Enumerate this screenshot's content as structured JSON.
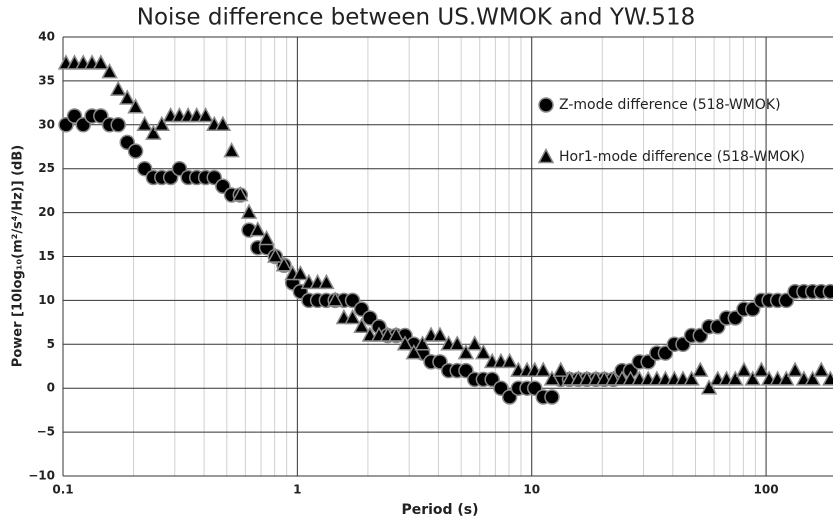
{
  "chart_data": {
    "type": "scatter",
    "title": "Noise difference between US.WMOK and YW.518",
    "xlabel": "Period (s)",
    "ylabel": "Power [10log₁₀(m²/s⁴/Hz)] (dB)",
    "xscale": "log",
    "xlim": [
      0.1,
      193
    ],
    "xticks": [
      0.1,
      1,
      10,
      100
    ],
    "ylim": [
      -10,
      40
    ],
    "yticks": [
      {
        "value": -10,
        "label": "−10"
      },
      {
        "value": -5,
        "label": "−5"
      },
      0,
      5,
      10,
      15,
      20,
      25,
      30,
      35,
      40
    ],
    "grid": true,
    "minor_grid": true,
    "legend": "upper right",
    "x": [
      0.103,
      0.112,
      0.122,
      0.133,
      0.145,
      0.158,
      0.172,
      0.188,
      0.204,
      0.223,
      0.243,
      0.264,
      0.288,
      0.314,
      0.342,
      0.372,
      0.406,
      0.442,
      0.481,
      0.524,
      0.571,
      0.622,
      0.678,
      0.739,
      0.805,
      0.877,
      0.955,
      1.03,
      1.12,
      1.22,
      1.33,
      1.45,
      1.58,
      1.72,
      1.88,
      2.04,
      2.23,
      2.43,
      2.64,
      2.88,
      3.14,
      3.42,
      3.72,
      4.06,
      4.42,
      4.81,
      5.24,
      5.71,
      6.22,
      6.78,
      7.39,
      8.05,
      8.77,
      9.55,
      10.3,
      11.2,
      12.2,
      13.3,
      14.5,
      15.8,
      17.2,
      18.8,
      20.4,
      22.3,
      24.3,
      26.4,
      28.8,
      31.4,
      34.2,
      37.2,
      40.6,
      44.2,
      48.1,
      52.4,
      57.1,
      62.2,
      67.8,
      73.9,
      80.5,
      87.7,
      95.5,
      103,
      112,
      122,
      133,
      145,
      158,
      172,
      188
    ],
    "series": [
      {
        "name": "Z-mode difference (518-WMOK)",
        "marker": "circle",
        "color": "#000000",
        "values": [
          30,
          31,
          30,
          31,
          31,
          30,
          30,
          28,
          27,
          25,
          24,
          24,
          24,
          25,
          24,
          24,
          24,
          24,
          23,
          22,
          22,
          18,
          16,
          16,
          15,
          14,
          12,
          11,
          10,
          10,
          10,
          10,
          10,
          10,
          9,
          8,
          7,
          6,
          6,
          6,
          5,
          4,
          3,
          3,
          2,
          2,
          2,
          1,
          1,
          1,
          0,
          -1,
          0,
          0,
          0,
          -1,
          -1,
          1,
          1,
          1,
          1,
          1,
          1,
          1,
          2,
          2,
          3,
          3,
          4,
          4,
          5,
          5,
          6,
          6,
          7,
          7,
          8,
          8,
          9,
          9,
          10,
          10,
          10,
          10,
          11,
          11,
          11,
          11,
          11
        ]
      },
      {
        "name": "Hor1-mode difference (518-WMOK)",
        "marker": "triangle",
        "color": "#000000",
        "values": [
          37,
          37,
          37,
          37,
          37,
          36,
          34,
          33,
          32,
          30,
          29,
          30,
          31,
          31,
          31,
          31,
          31,
          30,
          30,
          27,
          22,
          20,
          18,
          17,
          15,
          14,
          13,
          13,
          12,
          12,
          12,
          10,
          8,
          8,
          7,
          6,
          6,
          6,
          6,
          5,
          4,
          5,
          6,
          6,
          5,
          5,
          4,
          5,
          4,
          3,
          3,
          3,
          2,
          2,
          2,
          2,
          1,
          2,
          1,
          1,
          1,
          1,
          1,
          1,
          1,
          1,
          1,
          1,
          1,
          1,
          1,
          1,
          1,
          2,
          0,
          1,
          1,
          1,
          2,
          1,
          2,
          1,
          1,
          1,
          2,
          1,
          1,
          2,
          1
        ]
      }
    ]
  }
}
